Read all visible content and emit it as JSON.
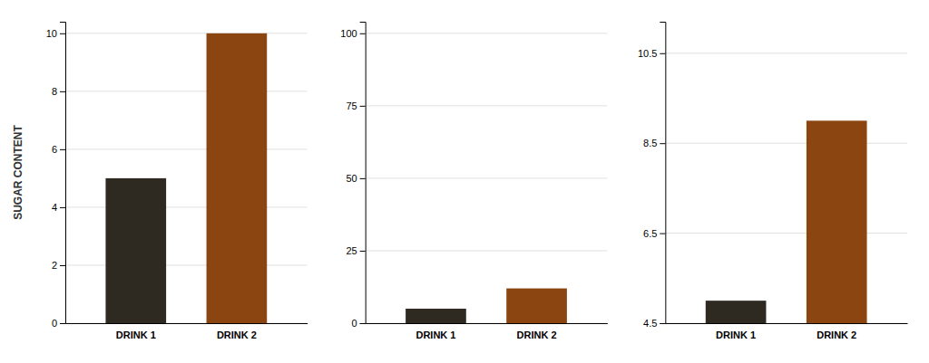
{
  "chart_data": [
    {
      "type": "bar",
      "categories": [
        "DRINK 1",
        "DRINK 2"
      ],
      "values": [
        5,
        10
      ],
      "colors": [
        "#2e2a22",
        "#8b4510"
      ],
      "ylim": [
        0,
        10.4
      ],
      "yticks": [
        0,
        2,
        4,
        6,
        8,
        10
      ],
      "y_label": "SUGAR CONTENT",
      "grid": true
    },
    {
      "type": "bar",
      "categories": [
        "DRINK 1",
        "DRINK 2"
      ],
      "values": [
        5,
        12
      ],
      "colors": [
        "#2e2a22",
        "#8b4510"
      ],
      "ylim": [
        0,
        104
      ],
      "yticks": [
        0,
        25,
        50,
        75,
        100
      ],
      "grid": true
    },
    {
      "type": "bar",
      "categories": [
        "DRINK 1",
        "DRINK 2"
      ],
      "values": [
        5,
        9
      ],
      "colors": [
        "#2e2a22",
        "#8b4510"
      ],
      "ylim": [
        4.5,
        11.2
      ],
      "yticks": [
        4.5,
        6.5,
        8.5,
        10.5
      ],
      "grid": true
    }
  ]
}
